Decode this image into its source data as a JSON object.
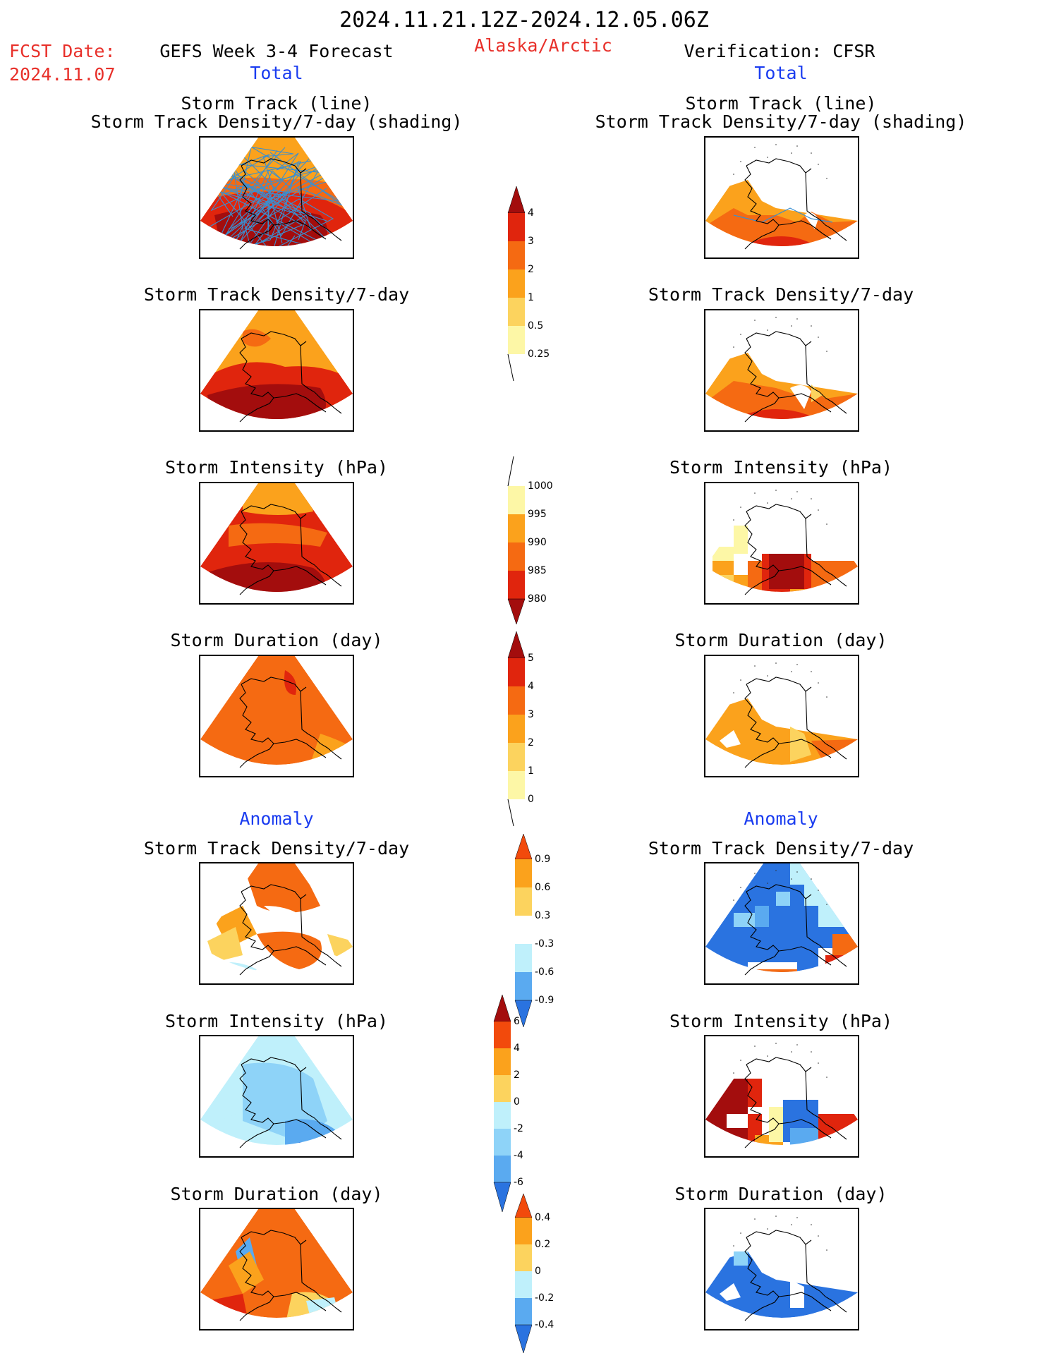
{
  "header": {
    "date_range": "2024.11.21.12Z-2024.12.05.06Z",
    "fcst_label": "FCST Date:",
    "fcst_date": "2024.11.07",
    "forecast_title": "GEFS Week 3-4 Forecast",
    "region": "Alaska/Arctic",
    "verification": "Verification: CFSR"
  },
  "sections": {
    "total_left": "Total",
    "total_right": "Total",
    "anomaly_left": "Anomaly",
    "anomaly_right": "Anomaly"
  },
  "panel_titles": {
    "track_line": "Storm Track (line)",
    "track_density_shading": "Storm Track Density/7-day (shading)",
    "track_density": "Storm Track Density/7-day",
    "intensity": "Storm Intensity (hPa)",
    "duration": "Storm Duration (day)"
  },
  "colorbars": {
    "track_density_total": [
      "4",
      "3",
      "2",
      "1",
      "0.5",
      "0.25"
    ],
    "intensity_total": [
      "1000",
      "995",
      "990",
      "985",
      "980"
    ],
    "duration_total": [
      "5",
      "4",
      "3",
      "2",
      "1",
      "0"
    ],
    "track_density_anomaly": [
      "0.9",
      "0.6",
      "0.3",
      "-0.3",
      "-0.6",
      "-0.9"
    ],
    "intensity_anomaly": [
      "6",
      "4",
      "2",
      "0",
      "-2",
      "-4",
      "-6"
    ],
    "duration_anomaly": [
      "0.4",
      "0.2",
      "0",
      "-0.2",
      "-0.4"
    ]
  },
  "colors": {
    "warm": [
      "#fdf7a6",
      "#fcd35e",
      "#fba21c",
      "#f56a12",
      "#e0250d",
      "#a30d0d"
    ],
    "cool": [
      "#bff0fb",
      "#8ed3f8",
      "#5aaaf0",
      "#2a73e0",
      "#1250c8"
    ],
    "track_line": "#3a8fd0"
  }
}
